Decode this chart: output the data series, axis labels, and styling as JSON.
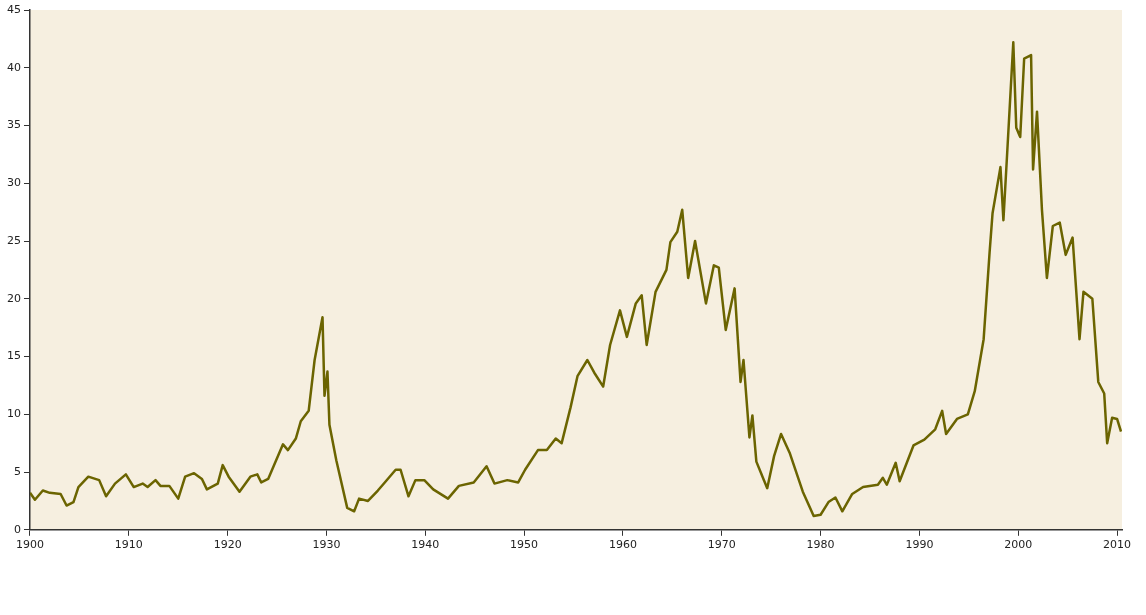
{
  "chart_data": {
    "type": "line",
    "x": [
      1900,
      1900.5,
      1901.3,
      1902,
      1903.1,
      1903.7,
      1904.4,
      1904.9,
      1905.9,
      1907,
      1907.7,
      1908.6,
      1909.7,
      1910.5,
      1911.4,
      1911.9,
      1912.7,
      1913.2,
      1914.1,
      1915,
      1915.7,
      1916.6,
      1917.4,
      1917.9,
      1919,
      1919.5,
      1920.1,
      1921.2,
      1922.3,
      1923,
      1923.4,
      1924.1,
      1924.8,
      1925.6,
      1926.1,
      1926.9,
      1927.4,
      1928.2,
      1928.8,
      1929.6,
      1929.8,
      1930.1,
      1930.3,
      1931,
      1932.1,
      1932.8,
      1933.3,
      1934.2,
      1935.2,
      1935.9,
      1937,
      1937.5,
      1938.3,
      1939,
      1939.9,
      1940.8,
      1942.3,
      1943.4,
      1944.9,
      1946.2,
      1947,
      1948.3,
      1949.4,
      1950.1,
      1951.4,
      1952.3,
      1953.2,
      1953.8,
      1954.7,
      1955.4,
      1956.4,
      1957.1,
      1958,
      1958.7,
      1959.7,
      1960.4,
      1961.3,
      1961.9,
      1962.4,
      1963.3,
      1964.4,
      1964.8,
      1965.5,
      1966,
      1966.6,
      1967.3,
      1968.4,
      1969.2,
      1969.7,
      1970.4,
      1971.3,
      1971.9,
      1972.2,
      1972.8,
      1973.1,
      1973.5,
      1974.6,
      1975.3,
      1976,
      1976.9,
      1978.2,
      1979.3,
      1980,
      1980.8,
      1981.5,
      1982.2,
      1983.2,
      1984.3,
      1985.8,
      1986.3,
      1986.7,
      1987.6,
      1988,
      1989.4,
      1990.5,
      1991.6,
      1992.3,
      1992.7,
      1993.8,
      1994.9,
      1995.6,
      1996.5,
      1997.1,
      1997.4,
      1998.2,
      1998.5,
      1998.9,
      1999.5,
      1999.8,
      2000.2,
      2000.6,
      2001.3,
      2001.5,
      2001.9,
      2002.4,
      2002.9,
      2003.5,
      2004.2,
      2004.8,
      2005.5,
      2006.2,
      2006.6,
      2007.5,
      2008.1,
      2008.7,
      2009,
      2009.5,
      2010,
      2010.4
    ],
    "series": [
      {
        "color": "#6b6400",
        "values": [
          3.2,
          2.6,
          3.4,
          3.2,
          3.1,
          2.1,
          2.4,
          3.7,
          4.6,
          4.3,
          2.9,
          4.0,
          4.8,
          3.7,
          4.0,
          3.7,
          4.3,
          3.8,
          3.8,
          2.7,
          4.6,
          4.9,
          4.4,
          3.5,
          4.0,
          5.6,
          4.6,
          3.3,
          4.6,
          4.8,
          4.1,
          4.4,
          5.8,
          7.4,
          6.9,
          7.9,
          9.4,
          10.3,
          14.7,
          18.4,
          11.6,
          13.7,
          9.1,
          6.0,
          1.9,
          1.6,
          2.7,
          2.5,
          3.4,
          4.1,
          5.2,
          5.2,
          2.9,
          4.3,
          4.3,
          3.5,
          2.7,
          3.8,
          4.1,
          5.5,
          4.0,
          4.3,
          4.1,
          5.2,
          6.9,
          6.9,
          7.9,
          7.5,
          10.6,
          13.3,
          14.7,
          13.6,
          12.4,
          16.0,
          19.0,
          16.7,
          19.6,
          20.3,
          16.0,
          20.6,
          22.5,
          24.9,
          25.8,
          27.7,
          21.8,
          25.0,
          19.6,
          22.9,
          22.7,
          17.3,
          20.9,
          12.8,
          14.7,
          8.0,
          9.9,
          5.9,
          3.6,
          6.4,
          8.3,
          6.6,
          3.3,
          1.2,
          1.3,
          2.4,
          2.8,
          1.6,
          3.1,
          3.7,
          3.9,
          4.5,
          3.9,
          5.8,
          4.2,
          7.3,
          7.8,
          8.7,
          10.3,
          8.3,
          9.6,
          10.0,
          12.0,
          16.5,
          24.0,
          27.4,
          31.4,
          26.8,
          32.9,
          42.2,
          34.8,
          34.0,
          40.8,
          41.1,
          31.2,
          36.2,
          27.7,
          21.8,
          26.3,
          26.6,
          23.8,
          25.3,
          16.5,
          20.6,
          20.0,
          12.8,
          11.8,
          7.5,
          9.7,
          9.6,
          8.5
        ]
      }
    ],
    "xlim": [
      1900,
      2010.5
    ],
    "xticks": [
      1900,
      1910,
      1920,
      1930,
      1940,
      1950,
      1960,
      1970,
      1980,
      1990,
      2000,
      2010
    ],
    "ylim": [
      0,
      45
    ],
    "yticks": [
      0,
      5,
      10,
      15,
      20,
      25,
      30,
      35,
      40,
      45
    ],
    "marker": "none",
    "line_style": "solid",
    "grid": false,
    "legend": false
  }
}
